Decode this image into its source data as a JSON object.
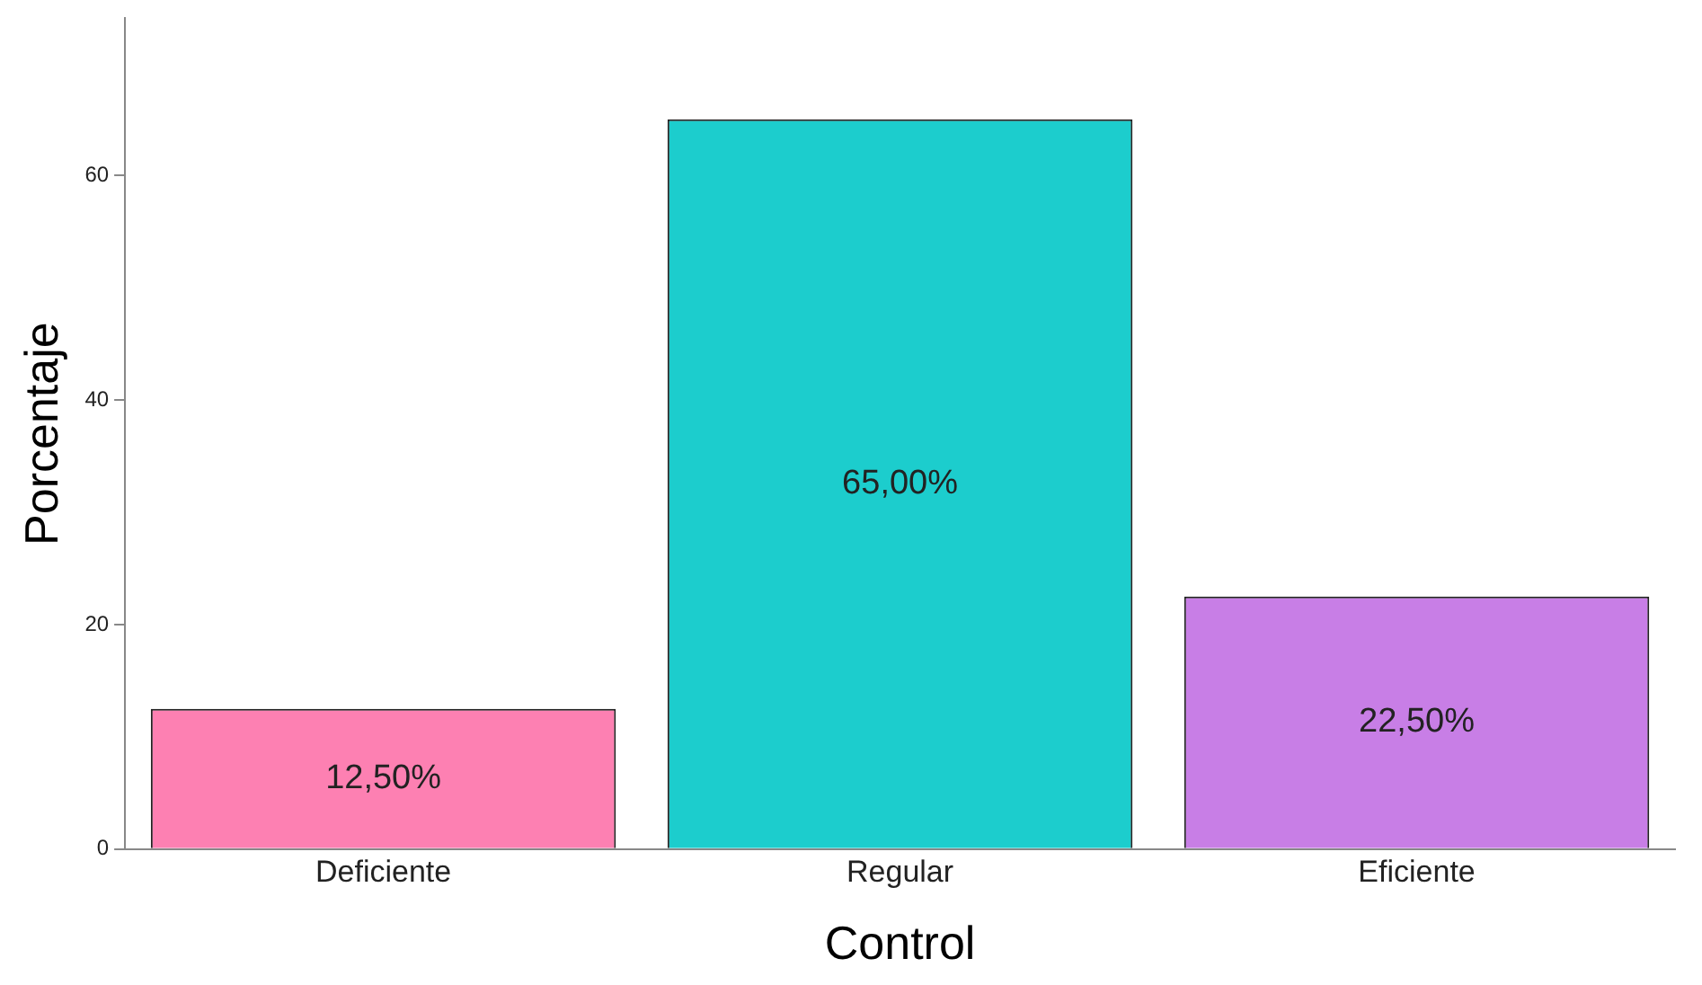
{
  "chart_data": {
    "type": "bar",
    "xlabel": "Control",
    "ylabel": "Porcentaje",
    "categories": [
      "Deficiente",
      "Regular",
      "Eficiente"
    ],
    "values": [
      12.5,
      65,
      22.5
    ],
    "colors": [
      "#fd80b2",
      "#1ccdcd",
      "#c87ee6"
    ],
    "value_labels": [
      "12,50%",
      "65,00%",
      "22,50%"
    ],
    "ylim": [
      0,
      74
    ],
    "yticks": [
      0,
      20,
      40,
      60
    ],
    "grid": false,
    "legend": false
  }
}
